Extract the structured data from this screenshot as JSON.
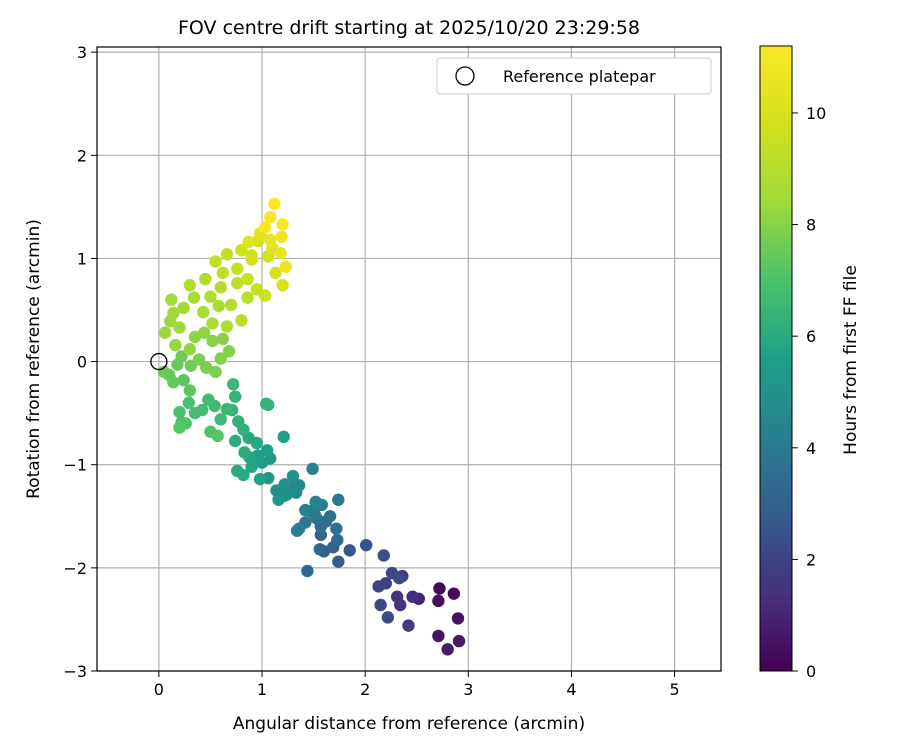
{
  "chart_data": {
    "type": "scatter",
    "title": "FOV centre drift starting at 2025/10/20 23:29:58",
    "xlabel": "Angular distance from reference (arcmin)",
    "ylabel": "Rotation from reference (arcmin)",
    "xlim": [
      -0.6,
      5.45
    ],
    "ylim": [
      -3.0,
      3.05
    ],
    "xticks": [
      0,
      1,
      2,
      3,
      4,
      5
    ],
    "yticks": [
      -3,
      -2,
      -1,
      0,
      1,
      2,
      3
    ],
    "xtick_labels": [
      "0",
      "1",
      "2",
      "3",
      "4",
      "5"
    ],
    "ytick_labels": [
      "−3",
      "−2",
      "−1",
      "0",
      "1",
      "2",
      "3"
    ],
    "grid": true,
    "legend": {
      "label": "Reference platepar",
      "placement": "top-right",
      "marker": "open-circle"
    },
    "reference_point": {
      "x": 0,
      "y": 0
    },
    "colorbar": {
      "label": "Hours from first FF file",
      "range": [
        0,
        11.2
      ],
      "ticks": [
        0,
        2,
        4,
        6,
        8,
        10
      ],
      "tick_labels": [
        "0",
        "2",
        "4",
        "6",
        "8",
        "10"
      ],
      "colormap": "viridis"
    },
    "points": [
      [
        2.72,
        -2.2,
        0.2
      ],
      [
        2.86,
        -2.25,
        0.3
      ],
      [
        2.71,
        -2.32,
        0.4
      ],
      [
        2.9,
        -2.49,
        0.5
      ],
      [
        2.71,
        -2.66,
        0.6
      ],
      [
        2.91,
        -2.71,
        0.7
      ],
      [
        2.8,
        -2.79,
        0.8
      ],
      [
        2.52,
        -2.3,
        1.0
      ],
      [
        2.46,
        -2.28,
        1.3
      ],
      [
        2.34,
        -2.36,
        1.4
      ],
      [
        2.31,
        -2.28,
        1.5
      ],
      [
        2.36,
        -2.08,
        1.6
      ],
      [
        2.42,
        -2.56,
        1.7
      ],
      [
        2.2,
        -2.15,
        1.8
      ],
      [
        2.13,
        -2.18,
        1.9
      ],
      [
        2.26,
        -2.05,
        2.0
      ],
      [
        2.15,
        -2.36,
        2.1
      ],
      [
        2.22,
        -2.48,
        2.2
      ],
      [
        2.18,
        -1.88,
        2.3
      ],
      [
        2.33,
        -2.1,
        2.2
      ],
      [
        2.01,
        -1.78,
        2.5
      ],
      [
        1.85,
        -1.83,
        2.6
      ],
      [
        1.74,
        -1.94,
        2.8
      ],
      [
        1.6,
        -1.84,
        2.9
      ],
      [
        1.69,
        -1.8,
        3.0
      ],
      [
        1.56,
        -1.82,
        3.1
      ],
      [
        1.57,
        -1.68,
        3.2
      ],
      [
        1.73,
        -1.73,
        3.3
      ],
      [
        1.44,
        -2.03,
        3.3
      ],
      [
        1.62,
        -1.55,
        3.4
      ],
      [
        1.72,
        -1.62,
        3.5
      ],
      [
        1.57,
        -1.6,
        3.5
      ],
      [
        1.66,
        -1.5,
        3.6
      ],
      [
        1.53,
        -1.52,
        3.7
      ],
      [
        1.42,
        -1.56,
        3.8
      ],
      [
        1.51,
        -1.48,
        3.9
      ],
      [
        1.74,
        -1.34,
        3.9
      ],
      [
        1.47,
        -1.45,
        4.0
      ],
      [
        1.36,
        -1.62,
        4.1
      ],
      [
        1.34,
        -1.64,
        4.2
      ],
      [
        1.58,
        -1.39,
        4.2
      ],
      [
        1.42,
        -1.44,
        4.3
      ],
      [
        1.52,
        -1.36,
        4.4
      ],
      [
        1.49,
        -1.04,
        4.4
      ],
      [
        1.28,
        -1.22,
        4.5
      ],
      [
        1.24,
        -1.29,
        4.6
      ],
      [
        1.33,
        -1.27,
        4.7
      ],
      [
        1.36,
        -1.2,
        4.7
      ],
      [
        1.22,
        -1.3,
        4.8
      ],
      [
        1.14,
        -1.25,
        4.9
      ],
      [
        1.22,
        -1.19,
        5.0
      ],
      [
        1.16,
        -1.34,
        5.1
      ],
      [
        1.3,
        -1.11,
        5.1
      ],
      [
        1.06,
        -1.13,
        5.2
      ],
      [
        1.08,
        -0.94,
        5.3
      ],
      [
        1.0,
        -0.98,
        5.4
      ],
      [
        1.05,
        -0.86,
        5.5
      ],
      [
        0.93,
        -0.97,
        5.5
      ],
      [
        0.96,
        -0.91,
        5.6
      ],
      [
        1.21,
        -0.73,
        5.6
      ],
      [
        0.98,
        -1.14,
        5.7
      ],
      [
        0.9,
        -1.02,
        5.8
      ],
      [
        0.88,
        -0.93,
        5.8
      ],
      [
        0.95,
        -0.79,
        5.9
      ],
      [
        0.87,
        -0.74,
        5.9
      ],
      [
        0.82,
        -1.1,
        6.0
      ],
      [
        0.76,
        -1.06,
        6.0
      ],
      [
        0.83,
        -0.88,
        6.1
      ],
      [
        0.74,
        -0.77,
        6.1
      ],
      [
        0.82,
        -0.66,
        6.2
      ],
      [
        0.77,
        -0.58,
        6.2
      ],
      [
        1.04,
        -0.41,
        6.3
      ],
      [
        1.06,
        -0.42,
        6.3
      ],
      [
        0.71,
        -0.47,
        6.4
      ],
      [
        0.74,
        -0.34,
        6.4
      ],
      [
        0.72,
        -0.22,
        6.5
      ],
      [
        0.66,
        -0.46,
        6.5
      ],
      [
        0.6,
        -0.56,
        6.6
      ],
      [
        0.54,
        -0.43,
        6.6
      ],
      [
        0.48,
        -0.37,
        6.7
      ],
      [
        0.42,
        -0.47,
        6.8
      ],
      [
        0.35,
        -0.5,
        6.8
      ],
      [
        0.29,
        -0.4,
        6.9
      ],
      [
        0.2,
        -0.49,
        7.0
      ],
      [
        0.22,
        -0.59,
        7.0
      ],
      [
        0.26,
        -0.6,
        7.1
      ],
      [
        0.5,
        -0.68,
        7.1
      ],
      [
        0.57,
        -0.72,
        7.2
      ],
      [
        0.2,
        -0.64,
        7.2
      ],
      [
        0.3,
        -0.28,
        7.3
      ],
      [
        0.24,
        -0.18,
        7.3
      ],
      [
        0.14,
        -0.2,
        7.4
      ],
      [
        0.1,
        -0.13,
        7.4
      ],
      [
        0.18,
        -0.03,
        7.5
      ],
      [
        0.05,
        -0.1,
        7.5
      ],
      [
        0.22,
        0.05,
        7.6
      ],
      [
        0.31,
        -0.04,
        7.6
      ],
      [
        0.39,
        0.02,
        7.7
      ],
      [
        0.46,
        -0.06,
        7.8
      ],
      [
        0.55,
        -0.1,
        7.8
      ],
      [
        0.6,
        0.03,
        7.9
      ],
      [
        0.68,
        0.1,
        7.9
      ],
      [
        0.62,
        0.22,
        8.0
      ],
      [
        0.52,
        0.2,
        8.0
      ],
      [
        0.44,
        0.28,
        8.1
      ],
      [
        0.35,
        0.24,
        8.1
      ],
      [
        0.3,
        0.12,
        8.2
      ],
      [
        0.16,
        0.16,
        8.2
      ],
      [
        0.06,
        0.28,
        8.3
      ],
      [
        0.11,
        0.39,
        8.3
      ],
      [
        0.2,
        0.33,
        8.4
      ],
      [
        0.14,
        0.47,
        8.4
      ],
      [
        0.12,
        0.6,
        8.5
      ],
      [
        0.24,
        0.52,
        8.5
      ],
      [
        0.34,
        0.62,
        8.6
      ],
      [
        0.43,
        0.48,
        8.6
      ],
      [
        0.52,
        0.37,
        8.7
      ],
      [
        0.58,
        0.54,
        8.7
      ],
      [
        0.66,
        0.34,
        8.8
      ],
      [
        0.3,
        0.74,
        8.8
      ],
      [
        0.45,
        0.8,
        8.9
      ],
      [
        0.5,
        0.63,
        8.9
      ],
      [
        0.6,
        0.72,
        9.0
      ],
      [
        0.7,
        0.55,
        9.0
      ],
      [
        0.8,
        0.4,
        9.1
      ],
      [
        0.86,
        0.62,
        9.1
      ],
      [
        0.76,
        0.76,
        9.2
      ],
      [
        0.62,
        0.86,
        9.3
      ],
      [
        0.55,
        0.97,
        9.3
      ],
      [
        0.66,
        1.04,
        9.4
      ],
      [
        0.76,
        0.9,
        9.5
      ],
      [
        0.86,
        0.8,
        9.5
      ],
      [
        0.95,
        0.7,
        9.6
      ],
      [
        1.03,
        0.64,
        9.7
      ],
      [
        0.9,
        1.03,
        9.7
      ],
      [
        0.8,
        1.08,
        9.8
      ],
      [
        0.96,
        1.17,
        9.9
      ],
      [
        1.06,
        1.02,
        9.9
      ],
      [
        1.13,
        0.86,
        10.0
      ],
      [
        1.2,
        0.74,
        10.1
      ],
      [
        1.1,
        1.1,
        10.2
      ],
      [
        0.87,
        1.16,
        10.3
      ],
      [
        0.98,
        1.24,
        10.4
      ],
      [
        1.08,
        1.18,
        10.5
      ],
      [
        1.18,
        1.05,
        10.6
      ],
      [
        1.23,
        0.92,
        10.7
      ],
      [
        1.19,
        1.21,
        10.8
      ],
      [
        1.03,
        1.3,
        10.9
      ],
      [
        1.2,
        1.33,
        11.0
      ],
      [
        1.08,
        1.4,
        11.0
      ],
      [
        1.12,
        1.53,
        11.2
      ],
      [
        0.9,
        0.99,
        10.0
      ]
    ]
  }
}
